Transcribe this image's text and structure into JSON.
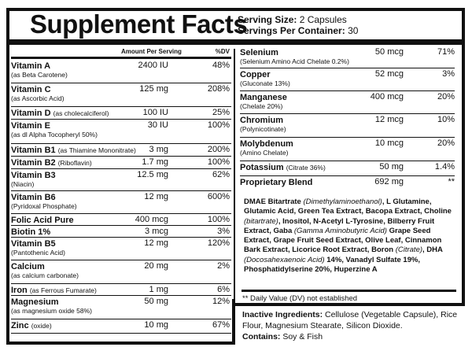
{
  "title": "Supplement Facts",
  "serving": {
    "size_label": "Serving Size:",
    "size": "2 Capsules",
    "per_label": "Servings Per Container:",
    "per": "30"
  },
  "headers": {
    "amount": "Amount Per Serving",
    "dv": "%DV"
  },
  "left": [
    {
      "name": "Vitamin A",
      "sub": "(as Beta Carotene)",
      "amount": "2400 IU",
      "dv": "48%"
    },
    {
      "name": "Vitamin C",
      "sub": "(as Ascorbic Acid)",
      "amount": "125 mg",
      "dv": "208%"
    },
    {
      "name": "Vitamin D",
      "inline": "(as cholecalciferol)",
      "amount": "100 IU",
      "dv": "25%"
    },
    {
      "name": "Vitamin E",
      "sub": "(as dl Alpha Tocopheryl 50%)",
      "amount": "30 IU",
      "dv": "100%"
    },
    {
      "name": "Vitamin B1",
      "inline": "(as Thiamine Mononitrate)",
      "amount": "3 mg",
      "dv": "200%"
    },
    {
      "name": "Vitamin B2",
      "inline": "(Riboflavin)",
      "amount": "1.7 mg",
      "dv": "100%"
    },
    {
      "name": "Vitamin B3",
      "sub": "(Niacin)",
      "amount": "12.5 mg",
      "dv": "62%"
    },
    {
      "name": "Vitamin B6",
      "sub": "(Pyridoxal Phosphate)",
      "amount": "12 mg",
      "dv": "600%"
    },
    {
      "name": "Folic Acid Pure",
      "amount": "400 mcg",
      "dv": "100%"
    },
    {
      "name": "Biotin 1%",
      "amount": "3 mcg",
      "dv": "3%"
    },
    {
      "name": "Vitamin B5",
      "sub": "(Pantothenic Acid)",
      "amount": "12 mg",
      "dv": "120%"
    },
    {
      "name": "Calcium",
      "sub": "(as calcium carbonate)",
      "amount": "20 mg",
      "dv": "2%"
    },
    {
      "name": "Iron",
      "inline": "(as Ferrous Fumarate)",
      "amount": "1 mg",
      "dv": "6%"
    },
    {
      "name": "Magnesium",
      "sub": "(as magnesium oxide 58%)",
      "amount": "50 mg",
      "dv": "12%"
    },
    {
      "name": "Zinc",
      "inline": "(oxide)",
      "amount": "10 mg",
      "dv": "67%"
    }
  ],
  "right": [
    {
      "name": "Selenium",
      "sub": "(Selenium Amino Acid Chelate 0.2%)",
      "amount": "50 mcg",
      "dv": "71%"
    },
    {
      "name": "Copper",
      "sub": "(Gluconate 13%)",
      "amount": "52 mcg",
      "dv": "3%"
    },
    {
      "name": "Manganese",
      "sub": "(Chelate 20%)",
      "amount": "400 mcg",
      "dv": "20%"
    },
    {
      "name": "Chromium",
      "sub": "(Polynicotinate)",
      "amount": "12 mcg",
      "dv": "10%"
    },
    {
      "name": "Molybdenum",
      "sub": "(Amino Chelate)",
      "amount": "10 mcg",
      "dv": "20%"
    },
    {
      "name": "Potassium",
      "inline": "(Citrate 36%)",
      "amount": "50 mg",
      "dv": "1.4%"
    },
    {
      "name": "Proprietary Blend",
      "amount": "692 mg",
      "dv": "**"
    }
  ],
  "blend": [
    {
      "t": "DMAE Bitartrate "
    },
    {
      "t": "(Dimethylaminoethanol)",
      "i": true
    },
    {
      "t": ", L Glutamine, Glutamic Acid, Green Tea Extract, Bacopa Extract, Choline "
    },
    {
      "t": "(bitartrate)",
      "i": true
    },
    {
      "t": ", Inositol, N-Acetyl L-Tyrosine, Bilberry Fruit Extract, Gaba "
    },
    {
      "t": "(Gamma Aminobutyric Acid)",
      "i": true
    },
    {
      "t": " Grape Seed Extract, Grape Fruit Seed Extract, Olive Leaf, Cinnamon Bark Extract, Licorice Root Extract, Boron "
    },
    {
      "t": "(Citrate)",
      "i": true
    },
    {
      "t": ", DHA "
    },
    {
      "t": "(Docosahexaenoic Acid)",
      "i": true
    },
    {
      "t": " 14%, Vanadyl Sulfate 19%, Phosphatidylserine 20%, Huperzine A"
    }
  ],
  "dv_note": "** Daily Value (DV) not established",
  "inactive": {
    "label": "Inactive Ingredients:",
    "text": " Cellulose (Vegetable Capsule), Rice Flour, Magnesium Stearate, Silicon Dioxide.",
    "contains_label": "Contains:",
    "contains": " Soy & Fish"
  }
}
